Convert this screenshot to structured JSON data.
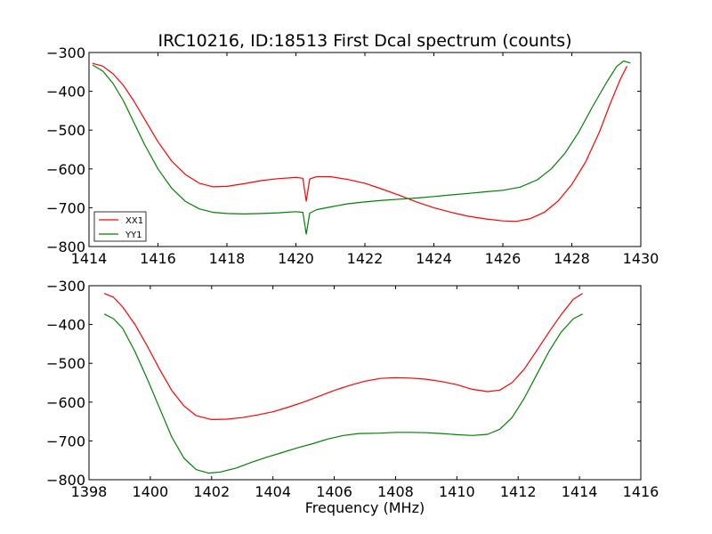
{
  "chart_data": [
    {
      "type": "line",
      "title": "IRC10216, ID:18513 First Dcal spectrum (counts)",
      "xlabel": "",
      "ylabel": "",
      "xlim": [
        1414,
        1430
      ],
      "ylim": [
        -800,
        -300
      ],
      "x_ticks": [
        1414,
        1416,
        1418,
        1420,
        1422,
        1424,
        1426,
        1428,
        1430
      ],
      "y_ticks": [
        -300,
        -400,
        -500,
        -600,
        -700,
        -800
      ],
      "legend": {
        "placement": "lower-left",
        "entries": [
          "XX1",
          "YY1"
        ]
      },
      "series": [
        {
          "name": "XX1",
          "color": "#ff0000",
          "points": [
            [
              1414.1,
              -328
            ],
            [
              1414.4,
              -335
            ],
            [
              1414.7,
              -355
            ],
            [
              1415.0,
              -385
            ],
            [
              1415.3,
              -425
            ],
            [
              1415.6,
              -470
            ],
            [
              1416.0,
              -530
            ],
            [
              1416.4,
              -580
            ],
            [
              1416.8,
              -615
            ],
            [
              1417.2,
              -637
            ],
            [
              1417.6,
              -646
            ],
            [
              1418.0,
              -645
            ],
            [
              1418.5,
              -638
            ],
            [
              1419.0,
              -630
            ],
            [
              1419.5,
              -625
            ],
            [
              1420.0,
              -622
            ],
            [
              1420.2,
              -624
            ],
            [
              1420.3,
              -683
            ],
            [
              1420.4,
              -626
            ],
            [
              1420.6,
              -620
            ],
            [
              1421.0,
              -620
            ],
            [
              1421.5,
              -627
            ],
            [
              1422.0,
              -637
            ],
            [
              1422.5,
              -652
            ],
            [
              1423.0,
              -668
            ],
            [
              1423.5,
              -685
            ],
            [
              1424.0,
              -700
            ],
            [
              1424.5,
              -712
            ],
            [
              1425.0,
              -722
            ],
            [
              1425.5,
              -729
            ],
            [
              1426.0,
              -734
            ],
            [
              1426.4,
              -735
            ],
            [
              1426.8,
              -728
            ],
            [
              1427.2,
              -712
            ],
            [
              1427.6,
              -683
            ],
            [
              1428.0,
              -640
            ],
            [
              1428.4,
              -582
            ],
            [
              1428.8,
              -505
            ],
            [
              1429.1,
              -435
            ],
            [
              1429.4,
              -370
            ],
            [
              1429.6,
              -335
            ]
          ]
        },
        {
          "name": "YY1",
          "color": "#008000",
          "points": [
            [
              1414.1,
              -332
            ],
            [
              1414.4,
              -348
            ],
            [
              1414.7,
              -380
            ],
            [
              1415.0,
              -425
            ],
            [
              1415.3,
              -480
            ],
            [
              1415.6,
              -535
            ],
            [
              1416.0,
              -600
            ],
            [
              1416.4,
              -650
            ],
            [
              1416.8,
              -684
            ],
            [
              1417.2,
              -703
            ],
            [
              1417.6,
              -712
            ],
            [
              1418.0,
              -715
            ],
            [
              1418.5,
              -716
            ],
            [
              1419.0,
              -715
            ],
            [
              1419.5,
              -713
            ],
            [
              1420.0,
              -710
            ],
            [
              1420.2,
              -712
            ],
            [
              1420.3,
              -768
            ],
            [
              1420.4,
              -714
            ],
            [
              1420.6,
              -705
            ],
            [
              1421.0,
              -698
            ],
            [
              1421.5,
              -690
            ],
            [
              1422.0,
              -685
            ],
            [
              1422.5,
              -681
            ],
            [
              1423.0,
              -678
            ],
            [
              1423.5,
              -675
            ],
            [
              1424.0,
              -671
            ],
            [
              1424.5,
              -667
            ],
            [
              1425.0,
              -663
            ],
            [
              1425.5,
              -659
            ],
            [
              1426.0,
              -655
            ],
            [
              1426.5,
              -647
            ],
            [
              1427.0,
              -628
            ],
            [
              1427.4,
              -600
            ],
            [
              1427.8,
              -560
            ],
            [
              1428.2,
              -505
            ],
            [
              1428.6,
              -440
            ],
            [
              1429.0,
              -378
            ],
            [
              1429.3,
              -336
            ],
            [
              1429.5,
              -322
            ],
            [
              1429.7,
              -327
            ]
          ]
        }
      ]
    },
    {
      "type": "line",
      "title": "",
      "xlabel": "Frequency (MHz)",
      "ylabel": "",
      "xlim": [
        1398,
        1416
      ],
      "ylim": [
        -800,
        -300
      ],
      "x_ticks": [
        1398,
        1400,
        1402,
        1404,
        1406,
        1408,
        1410,
        1412,
        1414,
        1416
      ],
      "y_ticks": [
        -300,
        -400,
        -500,
        -600,
        -700,
        -800
      ],
      "series": [
        {
          "color": "#ff0000",
          "points": [
            [
              1398.5,
              -320
            ],
            [
              1398.8,
              -330
            ],
            [
              1399.1,
              -355
            ],
            [
              1399.5,
              -400
            ],
            [
              1399.9,
              -455
            ],
            [
              1400.3,
              -515
            ],
            [
              1400.7,
              -570
            ],
            [
              1401.1,
              -610
            ],
            [
              1401.5,
              -635
            ],
            [
              1402.0,
              -645
            ],
            [
              1402.5,
              -644
            ],
            [
              1403.0,
              -640
            ],
            [
              1403.5,
              -633
            ],
            [
              1404.0,
              -625
            ],
            [
              1404.5,
              -613
            ],
            [
              1405.0,
              -600
            ],
            [
              1405.5,
              -585
            ],
            [
              1406.0,
              -570
            ],
            [
              1406.5,
              -557
            ],
            [
              1407.0,
              -546
            ],
            [
              1407.5,
              -539
            ],
            [
              1408.0,
              -537
            ],
            [
              1408.5,
              -538
            ],
            [
              1409.0,
              -541
            ],
            [
              1409.5,
              -547
            ],
            [
              1410.0,
              -555
            ],
            [
              1410.5,
              -567
            ],
            [
              1411.0,
              -573
            ],
            [
              1411.4,
              -569
            ],
            [
              1411.8,
              -550
            ],
            [
              1412.2,
              -515
            ],
            [
              1412.6,
              -468
            ],
            [
              1413.0,
              -420
            ],
            [
              1413.4,
              -375
            ],
            [
              1413.8,
              -335
            ],
            [
              1414.1,
              -320
            ]
          ]
        },
        {
          "color": "#008000",
          "points": [
            [
              1398.5,
              -373
            ],
            [
              1398.8,
              -385
            ],
            [
              1399.1,
              -410
            ],
            [
              1399.5,
              -470
            ],
            [
              1399.9,
              -540
            ],
            [
              1400.3,
              -615
            ],
            [
              1400.7,
              -690
            ],
            [
              1401.1,
              -745
            ],
            [
              1401.5,
              -774
            ],
            [
              1401.9,
              -783
            ],
            [
              1402.3,
              -780
            ],
            [
              1402.8,
              -770
            ],
            [
              1403.3,
              -755
            ],
            [
              1403.8,
              -742
            ],
            [
              1404.3,
              -730
            ],
            [
              1404.8,
              -718
            ],
            [
              1405.3,
              -707
            ],
            [
              1405.8,
              -695
            ],
            [
              1406.3,
              -686
            ],
            [
              1406.8,
              -681
            ],
            [
              1407.5,
              -680
            ],
            [
              1408.0,
              -678
            ],
            [
              1408.5,
              -678
            ],
            [
              1409.0,
              -679
            ],
            [
              1409.5,
              -681
            ],
            [
              1410.0,
              -684
            ],
            [
              1410.5,
              -686
            ],
            [
              1411.0,
              -683
            ],
            [
              1411.4,
              -670
            ],
            [
              1411.8,
              -640
            ],
            [
              1412.2,
              -590
            ],
            [
              1412.6,
              -530
            ],
            [
              1413.0,
              -470
            ],
            [
              1413.4,
              -420
            ],
            [
              1413.8,
              -385
            ],
            [
              1414.1,
              -373
            ]
          ]
        }
      ]
    }
  ]
}
